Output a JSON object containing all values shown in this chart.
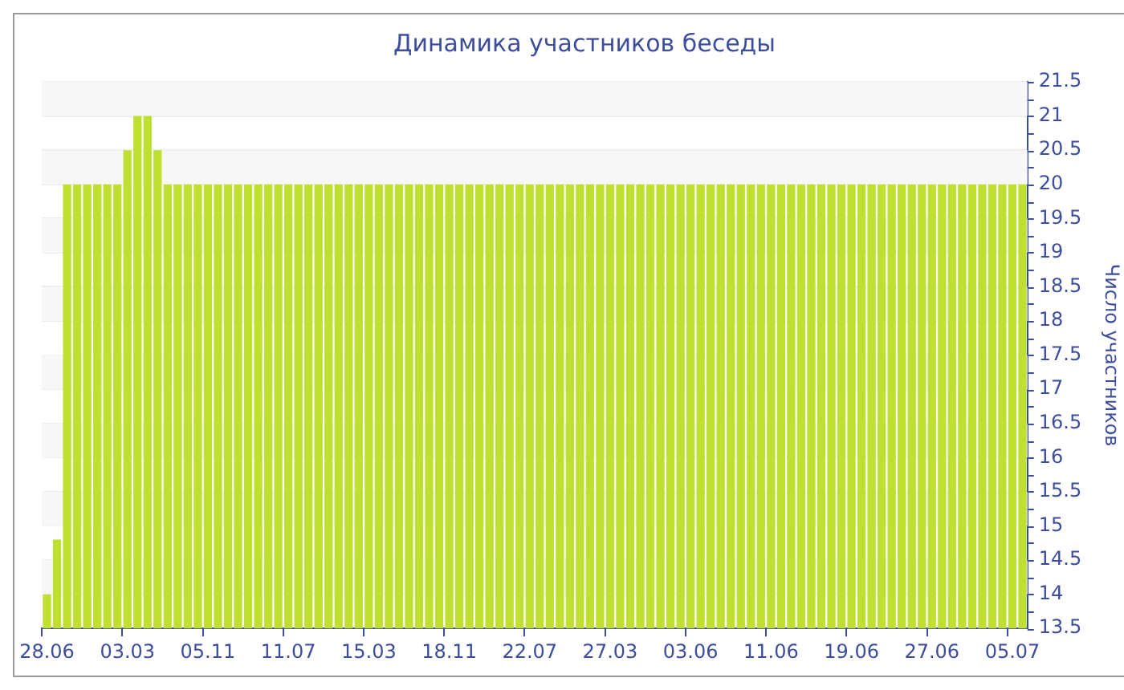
{
  "chart_data": {
    "type": "bar",
    "title": "Динамика участников беседы",
    "ylabel": "Число участников",
    "categories": [
      "28.06",
      null,
      null,
      null,
      null,
      null,
      null,
      null,
      "03.03",
      null,
      null,
      null,
      null,
      null,
      null,
      null,
      "05.11",
      null,
      null,
      null,
      null,
      null,
      null,
      null,
      "11.07",
      null,
      null,
      null,
      null,
      null,
      null,
      null,
      "15.03",
      null,
      null,
      null,
      null,
      null,
      null,
      null,
      "18.11",
      null,
      null,
      null,
      null,
      null,
      null,
      null,
      "22.07",
      null,
      null,
      null,
      null,
      null,
      null,
      null,
      "27.03",
      null,
      null,
      null,
      null,
      null,
      null,
      null,
      "03.06",
      null,
      null,
      null,
      null,
      null,
      null,
      null,
      "11.06",
      null,
      null,
      null,
      null,
      null,
      null,
      null,
      "19.06",
      null,
      null,
      null,
      null,
      null,
      null,
      null,
      "27.06",
      null,
      null,
      null,
      null,
      null,
      null,
      null,
      "05.07",
      null
    ],
    "values": [
      14,
      14.8,
      20,
      20,
      20,
      20,
      20,
      20,
      20.5,
      21,
      21,
      20.5,
      20,
      20,
      20,
      20,
      20,
      20,
      20,
      20,
      20,
      20,
      20,
      20,
      20,
      20,
      20,
      20,
      20,
      20,
      20,
      20,
      20,
      20,
      20,
      20,
      20,
      20,
      20,
      20,
      20,
      20,
      20,
      20,
      20,
      20,
      20,
      20,
      20,
      20,
      20,
      20,
      20,
      20,
      20,
      20,
      20,
      20,
      20,
      20,
      20,
      20,
      20,
      20,
      20,
      20,
      20,
      20,
      20,
      20,
      20,
      20,
      20,
      20,
      20,
      20,
      20,
      20,
      20,
      20,
      20,
      20,
      20,
      20,
      20,
      20,
      20,
      20,
      20,
      20,
      20,
      20,
      20,
      20,
      20,
      20,
      20,
      20
    ],
    "color": "#bfe030",
    "ylim": [
      13.5,
      21.5
    ],
    "yticks": [
      13.5,
      {
        "value": 13.75,
        "label": null
      },
      14,
      {
        "value": 14.25,
        "label": null
      },
      14.5,
      {
        "value": 14.75,
        "label": null
      },
      15,
      {
        "value": 15.25,
        "label": null
      },
      15.5,
      {
        "value": 15.75,
        "label": null
      },
      16,
      {
        "value": 16.25,
        "label": null
      },
      16.5,
      {
        "value": 16.75,
        "label": null
      },
      17,
      {
        "value": 17.25,
        "label": null
      },
      17.5,
      {
        "value": 17.75,
        "label": null
      },
      18,
      {
        "value": 18.25,
        "label": null
      },
      18.5,
      {
        "value": 18.75,
        "label": null
      },
      19,
      {
        "value": 19.25,
        "label": null
      },
      19.5,
      {
        "value": 19.75,
        "label": null
      },
      20,
      {
        "value": 20.25,
        "label": null
      },
      20.5,
      {
        "value": 20.75,
        "label": null
      },
      21,
      {
        "value": 21.25,
        "label": null
      },
      21.5
    ],
    "grid": "y"
  }
}
